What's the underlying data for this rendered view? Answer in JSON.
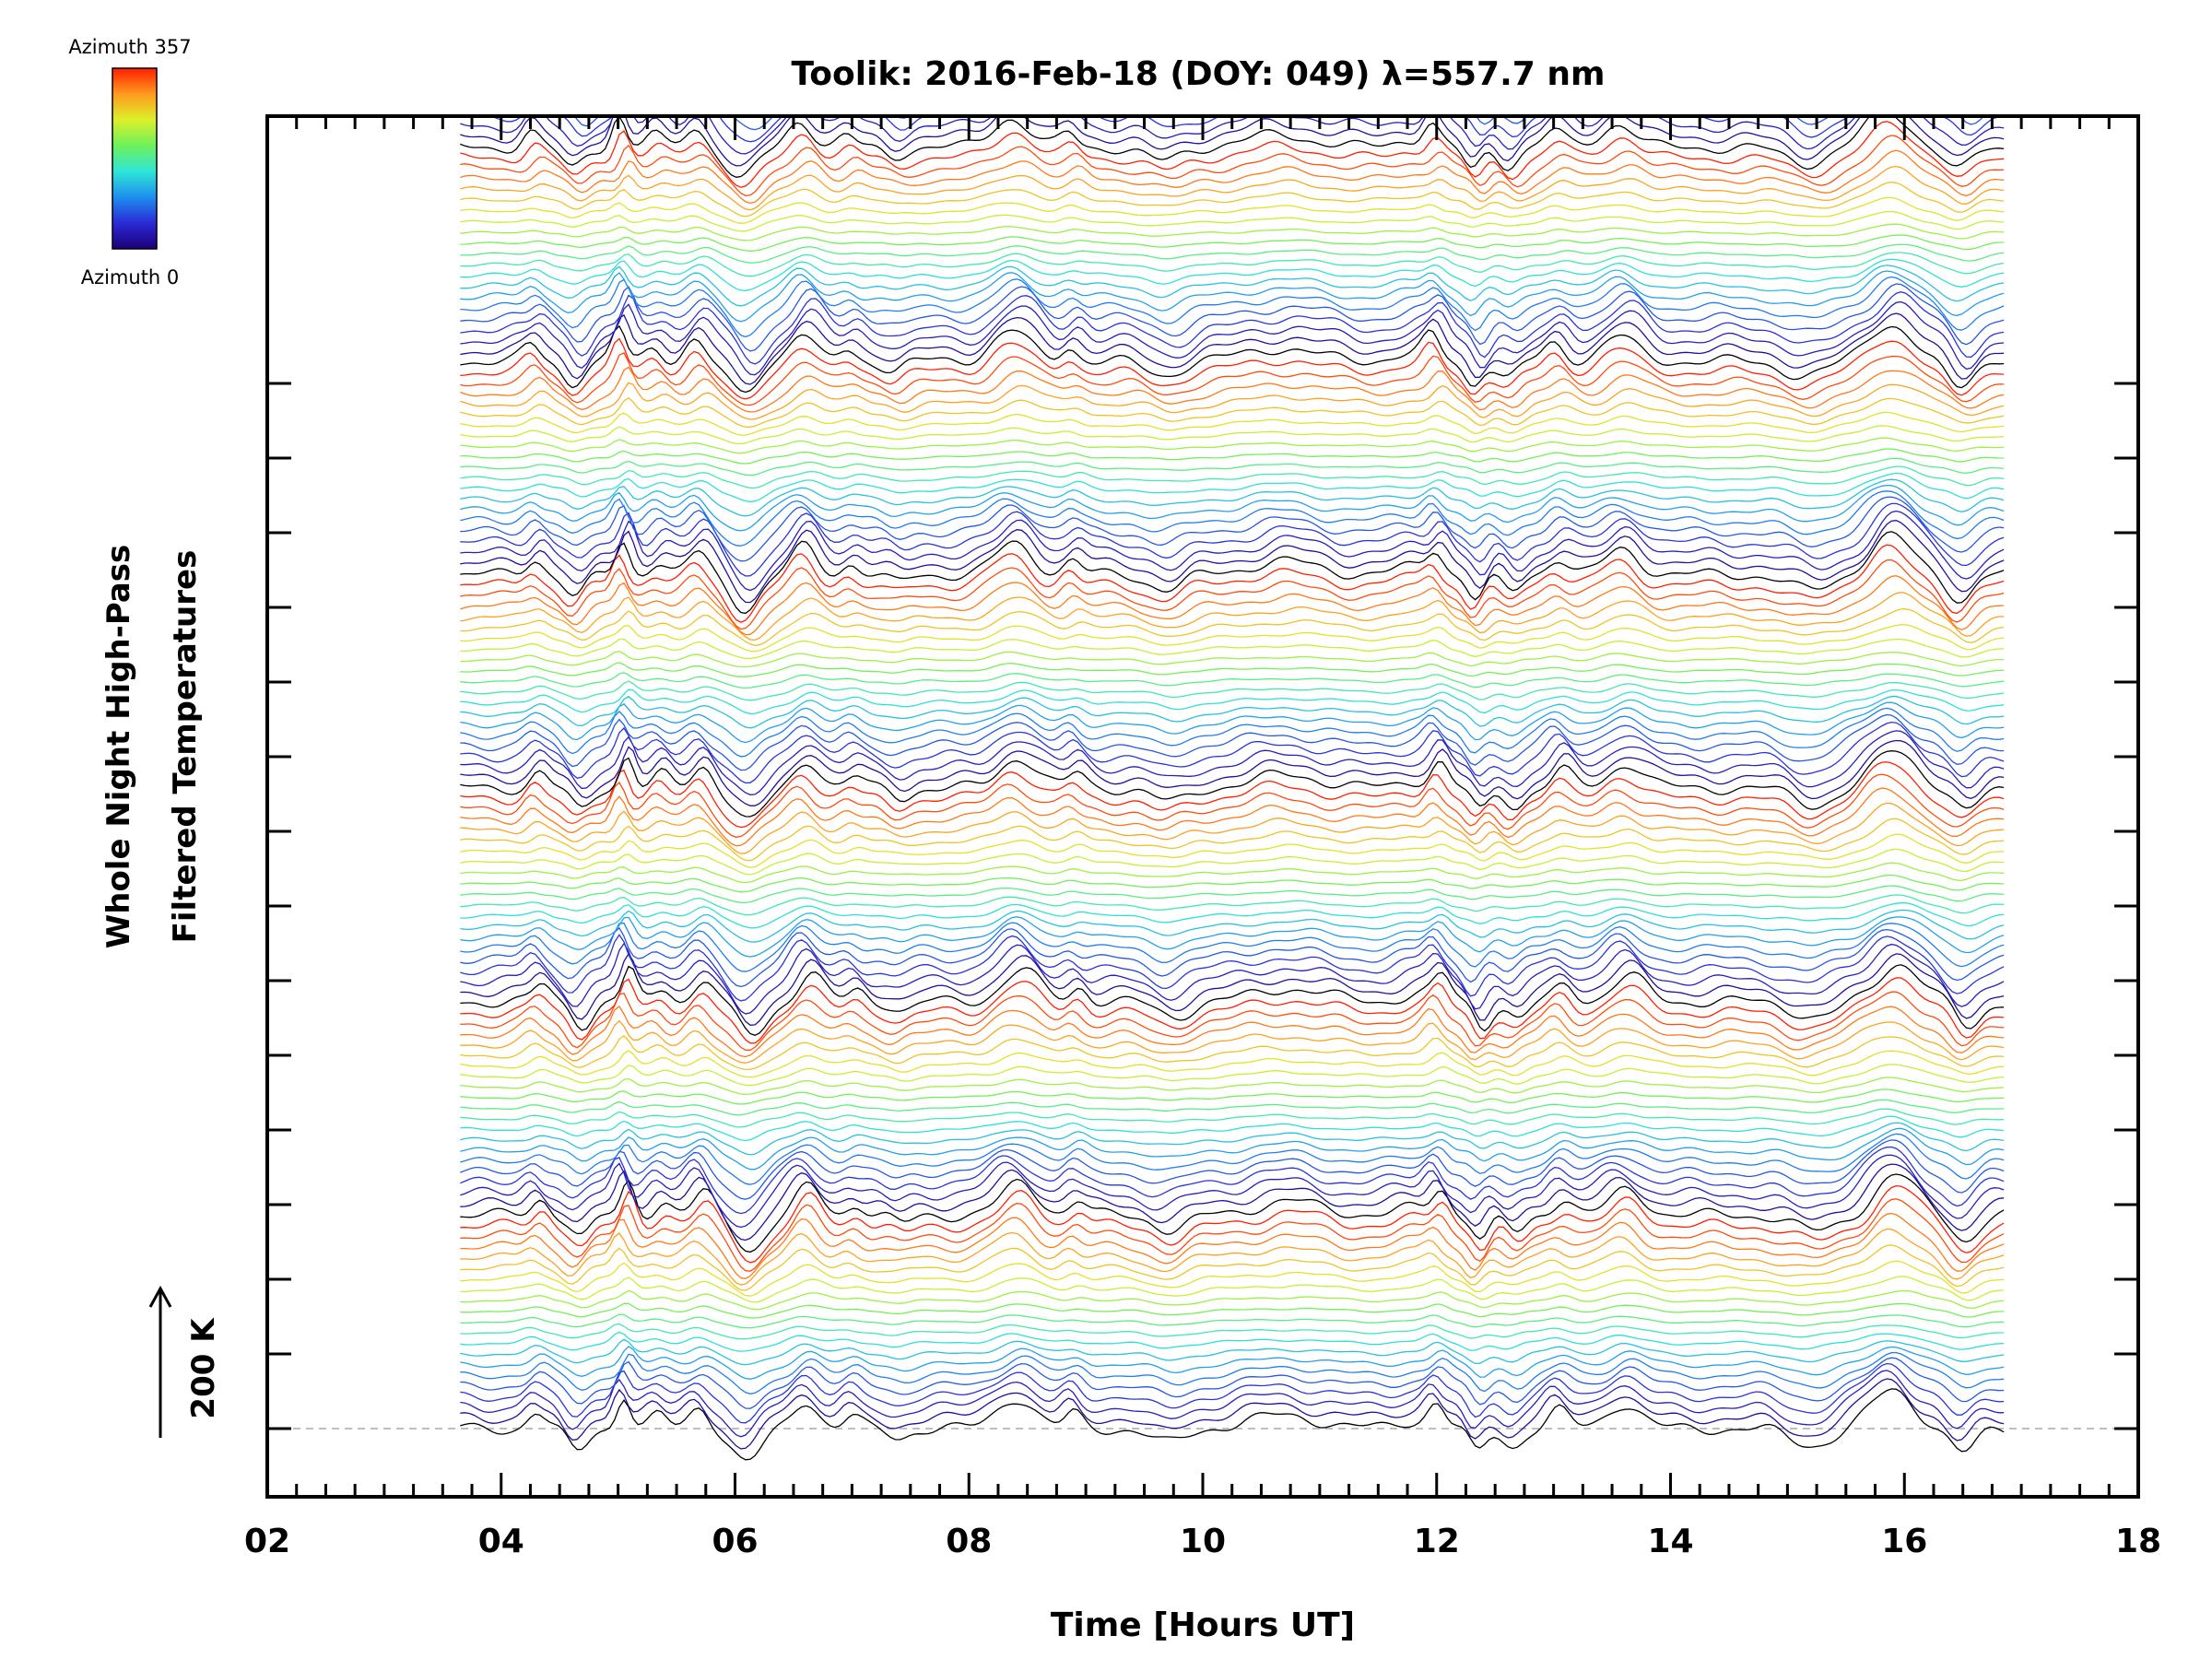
{
  "chart_data": {
    "type": "line",
    "title": "Toolik: 2016-Feb-18 (DOY: 049) λ=557.7 nm",
    "xlabel": "Time [Hours UT]",
    "ylabel_line1": "Whole Night High-Pass",
    "ylabel_line2": "Filtered Temperatures",
    "scale_label": "200 K",
    "xlim": [
      2,
      18
    ],
    "x_tick_labels": [
      "02",
      "04",
      "06",
      "08",
      "10",
      "12",
      "14",
      "16",
      "18"
    ],
    "time_range": [
      3.65,
      16.85
    ],
    "n_traces": 140,
    "trace_offset_K": 14.3,
    "azimuth_range": [
      0,
      357
    ],
    "colorbar": {
      "label_top": "Azimuth 357",
      "label_bottom": "Azimuth 0",
      "colormap": "rainbow",
      "stops": [
        "#1c0078",
        "#2a2ad6",
        "#1e8ef0",
        "#2ee6d6",
        "#6ef05a",
        "#dcf02a",
        "#ff9a1e",
        "#ff1e00"
      ]
    },
    "series_note": "Stacked high-pass filtered temperature traces, one per azimuth zone, offset vertically; colour encodes azimuth.",
    "colors": {
      "axis": "#000000",
      "baseline": "#aaaaaa",
      "background": "#ffffff"
    }
  }
}
